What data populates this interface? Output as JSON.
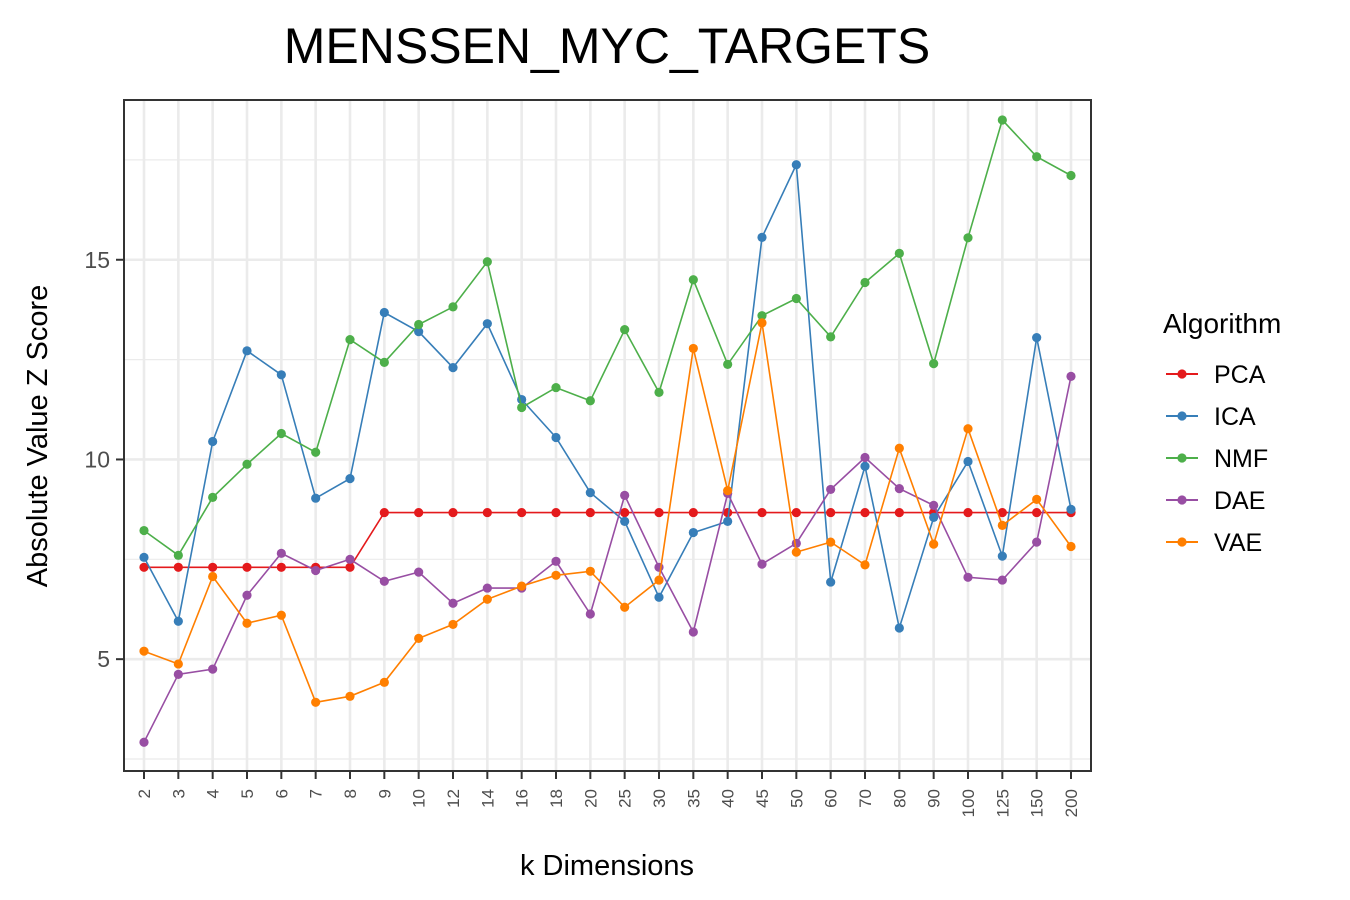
{
  "chart_data": {
    "type": "line",
    "title": "MENSSEN_MYC_TARGETS",
    "xlabel": "k Dimensions",
    "ylabel": "Absolute Value Z Score",
    "x": [
      "2",
      "3",
      "4",
      "5",
      "6",
      "7",
      "8",
      "9",
      "10",
      "12",
      "14",
      "16",
      "18",
      "20",
      "25",
      "30",
      "35",
      "40",
      "45",
      "50",
      "60",
      "70",
      "80",
      "90",
      "100",
      "125",
      "150",
      "200"
    ],
    "y_ticks": [
      "5",
      "10",
      "15"
    ],
    "ylim": [
      2.2,
      19.0
    ],
    "grid": true,
    "legend": {
      "title": "Algorithm",
      "position": "right"
    },
    "series": [
      {
        "name": "PCA",
        "color": "#e41a1c",
        "values": [
          7.3,
          7.3,
          7.3,
          7.3,
          7.3,
          7.3,
          7.3,
          8.67,
          8.67,
          8.67,
          8.67,
          8.67,
          8.67,
          8.67,
          8.67,
          8.67,
          8.67,
          8.67,
          8.67,
          8.67,
          8.67,
          8.67,
          8.67,
          8.67,
          8.67,
          8.67,
          8.67,
          8.67
        ]
      },
      {
        "name": "ICA",
        "color": "#377eb8",
        "values": [
          7.55,
          5.95,
          10.45,
          12.72,
          12.12,
          9.03,
          9.52,
          13.68,
          13.2,
          12.3,
          13.4,
          11.5,
          10.55,
          9.17,
          8.45,
          6.55,
          8.17,
          8.45,
          15.56,
          17.38,
          6.93,
          9.83,
          5.78,
          8.55,
          9.95,
          7.58,
          13.05,
          8.75
        ]
      },
      {
        "name": "NMF",
        "color": "#4daf4a",
        "values": [
          8.22,
          7.6,
          9.05,
          9.88,
          10.65,
          10.18,
          13.0,
          12.43,
          13.38,
          13.82,
          14.95,
          11.3,
          11.8,
          11.47,
          13.25,
          11.68,
          14.5,
          12.38,
          13.6,
          14.03,
          13.07,
          14.43,
          15.16,
          12.4,
          15.55,
          18.5,
          17.58,
          17.11
        ]
      },
      {
        "name": "DAE",
        "color": "#984ea3",
        "values": [
          2.92,
          4.62,
          4.75,
          6.6,
          7.65,
          7.22,
          7.5,
          6.95,
          7.18,
          6.4,
          6.78,
          6.78,
          7.45,
          6.13,
          9.1,
          7.3,
          5.68,
          9.15,
          7.38,
          7.9,
          9.25,
          10.05,
          9.27,
          8.85,
          7.05,
          6.98,
          7.93,
          12.08
        ]
      },
      {
        "name": "VAE",
        "color": "#ff7f00",
        "values": [
          5.2,
          4.88,
          7.07,
          5.9,
          6.1,
          3.92,
          4.07,
          4.42,
          5.52,
          5.87,
          6.5,
          6.83,
          7.1,
          7.2,
          6.3,
          6.98,
          12.78,
          9.22,
          13.42,
          7.68,
          7.93,
          7.36,
          10.28,
          7.88,
          10.77,
          8.35,
          9.0,
          7.82
        ]
      }
    ]
  }
}
